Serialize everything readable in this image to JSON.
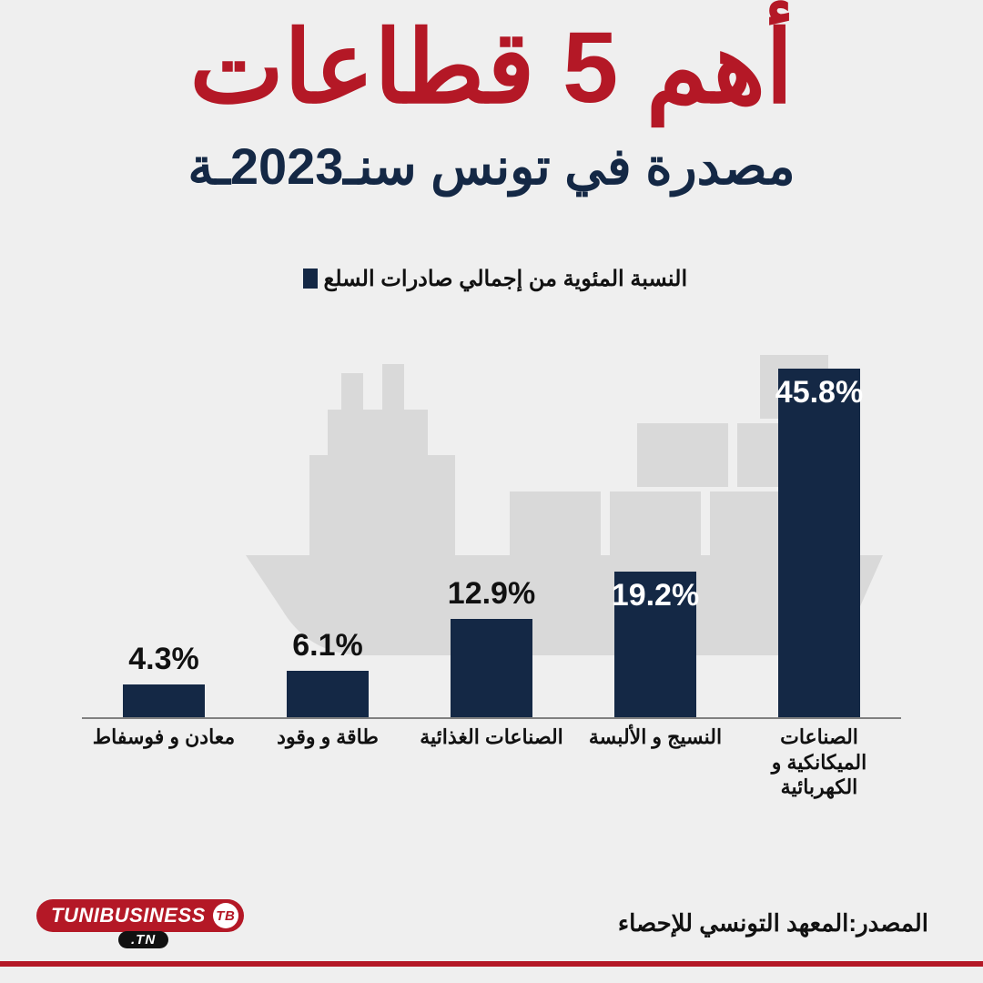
{
  "colors": {
    "title": "#b41826",
    "subtitle": "#142845",
    "bar": "#142845",
    "accent": "#b41826",
    "background": "#efefef",
    "ship": "#d6d6d6",
    "axis": "#808080"
  },
  "title": "أهم 5 قطاعات",
  "subtitle": "مصدرة في تونس سنـ2023ـة",
  "legend": {
    "label": "النسبة المئوية من إجمالي صادرات السلع"
  },
  "chart": {
    "type": "bar",
    "y_max": 50,
    "bar_gap_pct": 10,
    "value_suffix": "%",
    "value_fontsize": 34,
    "label_fontsize": 22,
    "series": [
      {
        "category": "الصناعات الميكانكية و الكهربائية",
        "value": 45.8,
        "value_position": "inside-top"
      },
      {
        "category": "النسيج و الألبسة",
        "value": 19.2,
        "value_position": "inside-top"
      },
      {
        "category": "الصناعات الغذائية",
        "value": 12.9,
        "value_position": "above"
      },
      {
        "category": "طاقة و وقود",
        "value": 6.1,
        "value_position": "above"
      },
      {
        "category": "معادن و فوسفاط",
        "value": 4.3,
        "value_position": "above"
      }
    ]
  },
  "source": {
    "prefix": "المصدر:",
    "text": "المعهد التونسي للإحصاء"
  },
  "brand": {
    "name": "TUNIBUSINESS",
    "badge": "TB",
    "tld": ".TN"
  }
}
